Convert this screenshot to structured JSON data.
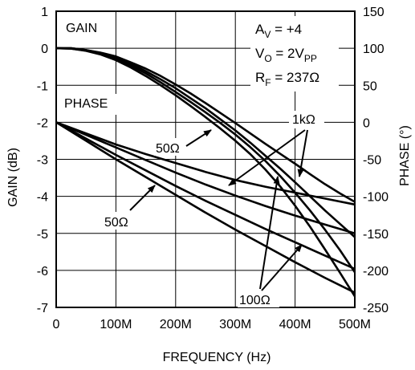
{
  "chart_data": {
    "type": "line",
    "xlabel": "FREQUENCY (Hz)",
    "ylabel": "GAIN (dB)",
    "y2label": "PHASE (°)",
    "xlim": [
      0,
      500
    ],
    "x_unit": "MHz",
    "ylim": [
      -7,
      1
    ],
    "y2lim": [
      -250,
      150
    ],
    "grid": true,
    "x_ticks": [
      {
        "value": 0,
        "label": "0"
      },
      {
        "value": 100,
        "label": "100M"
      },
      {
        "value": 200,
        "label": "200M"
      },
      {
        "value": 300,
        "label": "300M"
      },
      {
        "value": 400,
        "label": "400M"
      },
      {
        "value": 500,
        "label": "500M"
      }
    ],
    "y_ticks": [
      {
        "value": 1,
        "label": "1"
      },
      {
        "value": 0,
        "label": "0"
      },
      {
        "value": -1,
        "label": "-1"
      },
      {
        "value": -2,
        "label": "-2"
      },
      {
        "value": -3,
        "label": "-3"
      },
      {
        "value": -4,
        "label": "-4"
      },
      {
        "value": -5,
        "label": "-5"
      },
      {
        "value": -6,
        "label": "-6"
      },
      {
        "value": -7,
        "label": "-7"
      }
    ],
    "y2_ticks": [
      {
        "value": 150,
        "label": "150"
      },
      {
        "value": 100,
        "label": "100"
      },
      {
        "value": 50,
        "label": "50"
      },
      {
        "value": 0,
        "label": "0"
      },
      {
        "value": -50,
        "label": "-50"
      },
      {
        "value": -100,
        "label": "-100"
      },
      {
        "value": -150,
        "label": "-150"
      },
      {
        "value": -200,
        "label": "-200"
      },
      {
        "value": -250,
        "label": "-250"
      }
    ],
    "series": [
      {
        "axis": "gain",
        "x": [
          0,
          25,
          50,
          75,
          100,
          125,
          150,
          175,
          200,
          225,
          250,
          275,
          300,
          325,
          350,
          375,
          400,
          425,
          450,
          475,
          500
        ],
        "y": [
          0,
          0,
          -0.05,
          -0.12,
          -0.22,
          -0.38,
          -0.55,
          -0.75,
          -0.98,
          -1.22,
          -1.48,
          -1.75,
          -2.02,
          -2.3,
          -2.58,
          -2.85,
          -3.12,
          -3.4,
          -3.67,
          -3.92,
          -4.15
        ]
      },
      {
        "axis": "gain",
        "x": [
          0,
          25,
          50,
          75,
          100,
          125,
          150,
          175,
          200,
          225,
          250,
          275,
          300,
          325,
          350,
          375,
          400,
          425,
          450,
          475,
          500
        ],
        "y": [
          0,
          0,
          -0.05,
          -0.13,
          -0.25,
          -0.42,
          -0.62,
          -0.84,
          -1.08,
          -1.35,
          -1.62,
          -1.92,
          -2.22,
          -2.55,
          -2.9,
          -3.25,
          -3.62,
          -4.0,
          -4.38,
          -4.74,
          -5.1
        ]
      },
      {
        "axis": "gain",
        "x": [
          0,
          25,
          50,
          75,
          100,
          125,
          150,
          175,
          200,
          225,
          250,
          275,
          300,
          325,
          350,
          375,
          400,
          425,
          450,
          475,
          500
        ],
        "y": [
          0,
          -0.01,
          -0.06,
          -0.15,
          -0.28,
          -0.47,
          -0.68,
          -0.92,
          -1.18,
          -1.45,
          -1.73,
          -2.02,
          -2.33,
          -2.67,
          -3.04,
          -3.45,
          -3.9,
          -4.38,
          -4.9,
          -5.45,
          -6.05
        ]
      },
      {
        "axis": "gain",
        "x": [
          0,
          25,
          50,
          75,
          100,
          125,
          150,
          175,
          200,
          225,
          250,
          275,
          300,
          325,
          350,
          375,
          400,
          425,
          450,
          475,
          500
        ],
        "y": [
          0,
          -0.01,
          -0.07,
          -0.17,
          -0.32,
          -0.52,
          -0.75,
          -1.0,
          -1.27,
          -1.56,
          -1.86,
          -2.17,
          -2.5,
          -2.86,
          -3.27,
          -3.73,
          -4.25,
          -4.82,
          -5.43,
          -6.06,
          -6.7
        ]
      },
      {
        "axis": "phase",
        "x": [
          0,
          50,
          100,
          150,
          200,
          250,
          300,
          350,
          400,
          450,
          500
        ],
        "y": [
          0,
          -15,
          -30,
          -43,
          -55,
          -67,
          -78,
          -87,
          -95,
          -103,
          -111
        ]
      },
      {
        "axis": "phase",
        "x": [
          0,
          50,
          100,
          150,
          200,
          250,
          300,
          350,
          400,
          450,
          500
        ],
        "y": [
          0,
          -17,
          -34,
          -51,
          -68,
          -84,
          -99,
          -113,
          -126,
          -138,
          -150
        ]
      },
      {
        "axis": "phase",
        "x": [
          0,
          50,
          100,
          150,
          200,
          250,
          300,
          350,
          400,
          450,
          500
        ],
        "y": [
          0,
          -22,
          -44,
          -65,
          -86,
          -106,
          -125,
          -144,
          -162,
          -180,
          -198
        ]
      },
      {
        "axis": "phase",
        "x": [
          0,
          50,
          100,
          150,
          200,
          250,
          300,
          350,
          400,
          450,
          500
        ],
        "y": [
          0,
          -25,
          -50,
          -74,
          -98,
          -122,
          -145,
          -167,
          -189,
          -210,
          -230
        ]
      }
    ],
    "annotations": [
      {
        "id": "gain",
        "text": "GAIN"
      },
      {
        "id": "phase",
        "text": "PHASE"
      },
      {
        "id": "av",
        "base": "A",
        "sub": "V",
        "rest": " = +4"
      },
      {
        "id": "vo",
        "base": "V",
        "sub": "O",
        "rest": " = 2V",
        "sub2": "PP"
      },
      {
        "id": "rf",
        "base": "R",
        "sub": "F",
        "rest": " = 237Ω"
      },
      {
        "id": "gain50",
        "text": "50Ω"
      },
      {
        "id": "phase50",
        "text": "50Ω"
      },
      {
        "id": "load1k",
        "text": "1kΩ"
      },
      {
        "id": "load100",
        "text": "100Ω"
      }
    ]
  }
}
